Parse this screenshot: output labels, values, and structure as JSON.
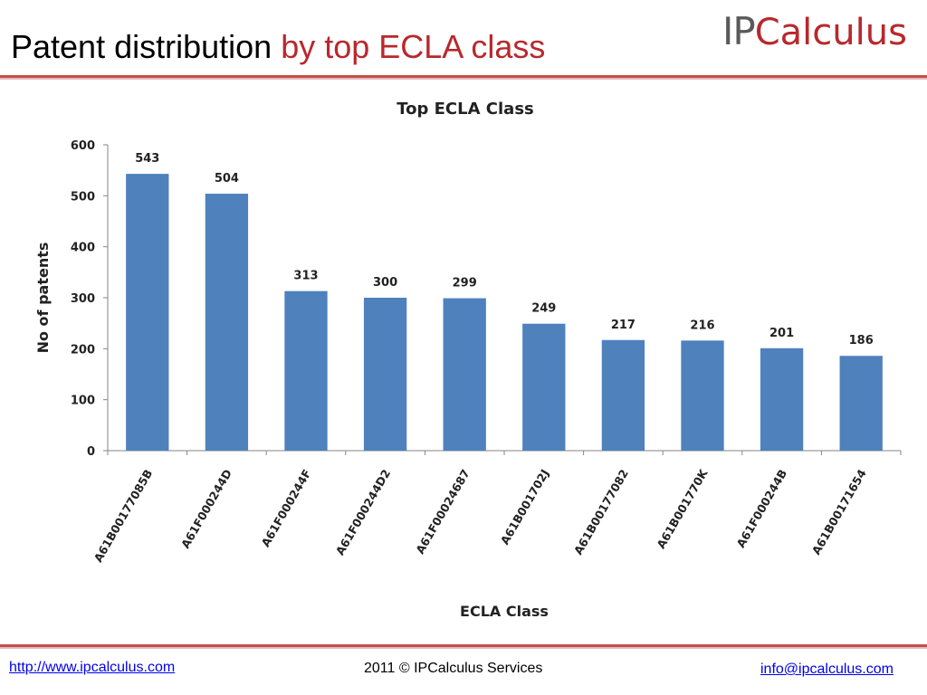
{
  "slide": {
    "title_main": "Patent distribution",
    "title_accent": "by top ECLA class"
  },
  "logo": {
    "ip": "IP",
    "rest": "Calculus"
  },
  "footer": {
    "website": "http://www.ipcalculus.com",
    "copyright": "2011 © IPCalculus Services",
    "email": "info@ipcalculus.com"
  },
  "colors": {
    "accent": "#b8282d",
    "bar": "#4f81bd",
    "rule": "#c0504d"
  },
  "chart_data": {
    "type": "bar",
    "title": "Top ECLA Class",
    "xlabel": "ECLA Class",
    "ylabel": "No of patents",
    "categories": [
      "A61B00177085B",
      "A61F000244D",
      "A61F000244F",
      "A61F000244D2",
      "A61F00024687",
      "A61B001702J",
      "A61B00177082",
      "A61B001770K",
      "A61F000244B",
      "A61B00171654"
    ],
    "values": [
      543,
      504,
      313,
      300,
      299,
      249,
      217,
      216,
      201,
      186
    ],
    "data_labels": [
      "543",
      "504",
      "313",
      "300",
      "299",
      "249",
      "217",
      "216",
      "201",
      "186"
    ],
    "ylim": [
      0,
      600
    ],
    "yticks": [
      0,
      100,
      200,
      300,
      400,
      500,
      600
    ],
    "ytick_labels": [
      "0",
      "100",
      "200",
      "300",
      "400",
      "500",
      "600"
    ],
    "grid": false,
    "legend": "none"
  }
}
